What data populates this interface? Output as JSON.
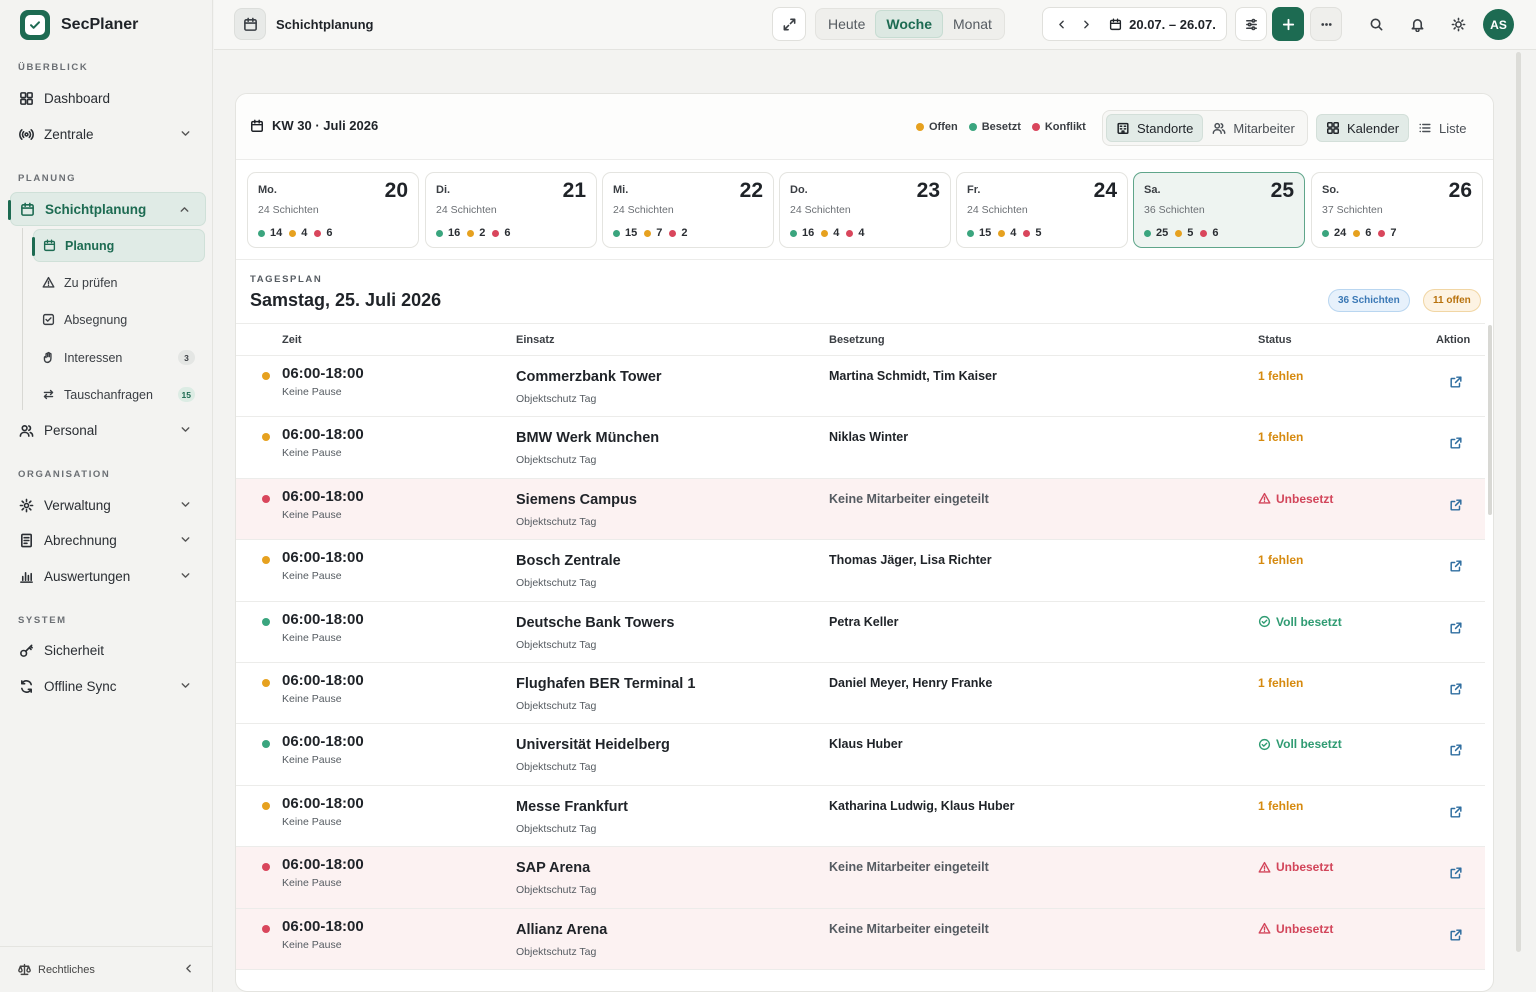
{
  "app": {
    "name": "SecPlaner"
  },
  "sidebar": {
    "sections": {
      "overview": "ÜBERBLICK",
      "planning": "PLANUNG",
      "organisation": "ORGANISATION",
      "system": "SYSTEM"
    },
    "items": {
      "dashboard": "Dashboard",
      "zentrale": "Zentrale",
      "schichtplanung": "Schichtplanung",
      "personal": "Personal",
      "verwaltung": "Verwaltung",
      "abrechnung": "Abrechnung",
      "auswertungen": "Auswertungen",
      "sicherheit": "Sicherheit",
      "offline": "Offline Sync"
    },
    "sub": {
      "planung": "Planung",
      "pruefen": "Zu prüfen",
      "absegnung": "Absegnung",
      "interessen": "Interessen",
      "interessen_count": "3",
      "tausch": "Tauschanfragen",
      "tausch_count": "15"
    },
    "footer": "Rechtliches"
  },
  "topbar": {
    "title": "Schichtplanung",
    "views": [
      "Heute",
      "Woche",
      "Monat"
    ],
    "active_view": "Woche",
    "date_range": "20.07. – 26.07.",
    "avatar": "AS"
  },
  "week": {
    "label": "KW 30 · Juli 2026",
    "legend": {
      "open": "Offen",
      "filled": "Besetzt",
      "conflict": "Konflikt"
    },
    "group_tabs": [
      "Standorte",
      "Mitarbeiter"
    ],
    "mode_tabs": [
      "Kalender",
      "Liste"
    ],
    "days": [
      {
        "name": "Mo.",
        "date": "20",
        "shifts": "24 Schichten",
        "filled": "14",
        "open": "4",
        "conflict": "6"
      },
      {
        "name": "Di.",
        "date": "21",
        "shifts": "24 Schichten",
        "filled": "16",
        "open": "2",
        "conflict": "6"
      },
      {
        "name": "Mi.",
        "date": "22",
        "shifts": "24 Schichten",
        "filled": "15",
        "open": "7",
        "conflict": "2"
      },
      {
        "name": "Do.",
        "date": "23",
        "shifts": "24 Schichten",
        "filled": "16",
        "open": "4",
        "conflict": "4"
      },
      {
        "name": "Fr.",
        "date": "24",
        "shifts": "24 Schichten",
        "filled": "15",
        "open": "4",
        "conflict": "5"
      },
      {
        "name": "Sa.",
        "date": "25",
        "shifts": "36 Schichten",
        "filled": "25",
        "open": "5",
        "conflict": "6"
      },
      {
        "name": "So.",
        "date": "26",
        "shifts": "37 Schichten",
        "filled": "24",
        "open": "6",
        "conflict": "7"
      }
    ]
  },
  "dayplan": {
    "label": "TAGESPLAN",
    "title": "Samstag, 25. Juli 2026",
    "badge_shifts": "36 Schichten",
    "badge_open": "11 offen",
    "columns": {
      "time": "Zeit",
      "assignment": "Einsatz",
      "staffing": "Besetzung",
      "status": "Status",
      "action": "Aktion"
    },
    "rows": [
      {
        "time": "06:00-18:00",
        "pause": "Keine Pause",
        "site": "Commerzbank Tower",
        "type": "Objektschutz Tag",
        "staff": "Martina Schmidt, Tim Kaiser",
        "status": "1 fehlen",
        "kind": "open"
      },
      {
        "time": "06:00-18:00",
        "pause": "Keine Pause",
        "site": "BMW Werk München",
        "type": "Objektschutz Tag",
        "staff": "Niklas Winter",
        "status": "1 fehlen",
        "kind": "open"
      },
      {
        "time": "06:00-18:00",
        "pause": "Keine Pause",
        "site": "Siemens Campus",
        "type": "Objektschutz Tag",
        "staff": "Keine Mitarbeiter eingeteilt",
        "status": "Unbesetzt",
        "kind": "bad"
      },
      {
        "time": "06:00-18:00",
        "pause": "Keine Pause",
        "site": "Bosch Zentrale",
        "type": "Objektschutz Tag",
        "staff": "Thomas Jäger, Lisa Richter",
        "status": "1 fehlen",
        "kind": "open"
      },
      {
        "time": "06:00-18:00",
        "pause": "Keine Pause",
        "site": "Deutsche Bank Towers",
        "type": "Objektschutz Tag",
        "staff": "Petra Keller",
        "status": "Voll besetzt",
        "kind": "ok"
      },
      {
        "time": "06:00-18:00",
        "pause": "Keine Pause",
        "site": "Flughafen BER Terminal 1",
        "type": "Objektschutz Tag",
        "staff": "Daniel Meyer, Henry Franke",
        "status": "1 fehlen",
        "kind": "open"
      },
      {
        "time": "06:00-18:00",
        "pause": "Keine Pause",
        "site": "Universität Heidelberg",
        "type": "Objektschutz Tag",
        "staff": "Klaus Huber",
        "status": "Voll besetzt",
        "kind": "ok"
      },
      {
        "time": "06:00-18:00",
        "pause": "Keine Pause",
        "site": "Messe Frankfurt",
        "type": "Objektschutz Tag",
        "staff": "Katharina Ludwig, Klaus Huber",
        "status": "1 fehlen",
        "kind": "open"
      },
      {
        "time": "06:00-18:00",
        "pause": "Keine Pause",
        "site": "SAP Arena",
        "type": "Objektschutz Tag",
        "staff": "Keine Mitarbeiter eingeteilt",
        "status": "Unbesetzt",
        "kind": "bad"
      },
      {
        "time": "06:00-18:00",
        "pause": "Keine Pause",
        "site": "Allianz Arena",
        "type": "Objektschutz Tag",
        "staff": "Keine Mitarbeiter eingeteilt",
        "status": "Unbesetzt",
        "kind": "bad"
      }
    ]
  },
  "colors": {
    "brand": "#1d6b52",
    "open": "#e6a11f",
    "filled": "#3aa57e",
    "conflict": "#d9465c"
  }
}
